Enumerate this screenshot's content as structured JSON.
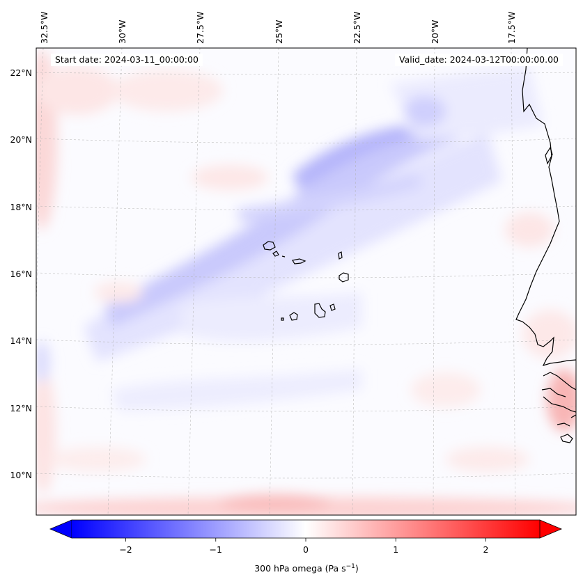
{
  "map": {
    "start_date_text": "Start date: 2024-03-11_00:00:00",
    "valid_date_text": "Valid_date: 2024-03-12T00:00:00.00",
    "lon_labels": [
      "32.5°W",
      "30°W",
      "27.5°W",
      "25°W",
      "22.5°W",
      "20°W",
      "17.5°W"
    ],
    "lat_labels": [
      "22°N",
      "20°N",
      "18°N",
      "16°N",
      "14°N",
      "12°N",
      "10°N"
    ],
    "field": "300 hPa omega",
    "colormap": "bwr",
    "colors": {
      "negative": "#0000ff",
      "zero": "#ffffff",
      "positive": "#ff0000",
      "coastline": "#000000",
      "gridline": "#b0b0b0"
    }
  },
  "colorbar": {
    "ticks": [
      "−2",
      "−1",
      "0",
      "1",
      "2"
    ],
    "tick_values": [
      -2,
      -1,
      0,
      1,
      2
    ],
    "range": [
      -2.6,
      2.6
    ],
    "extend": "both",
    "label_main": "300 hPa omega (Pa s",
    "label_sup": "−1",
    "label_end": ")"
  }
}
